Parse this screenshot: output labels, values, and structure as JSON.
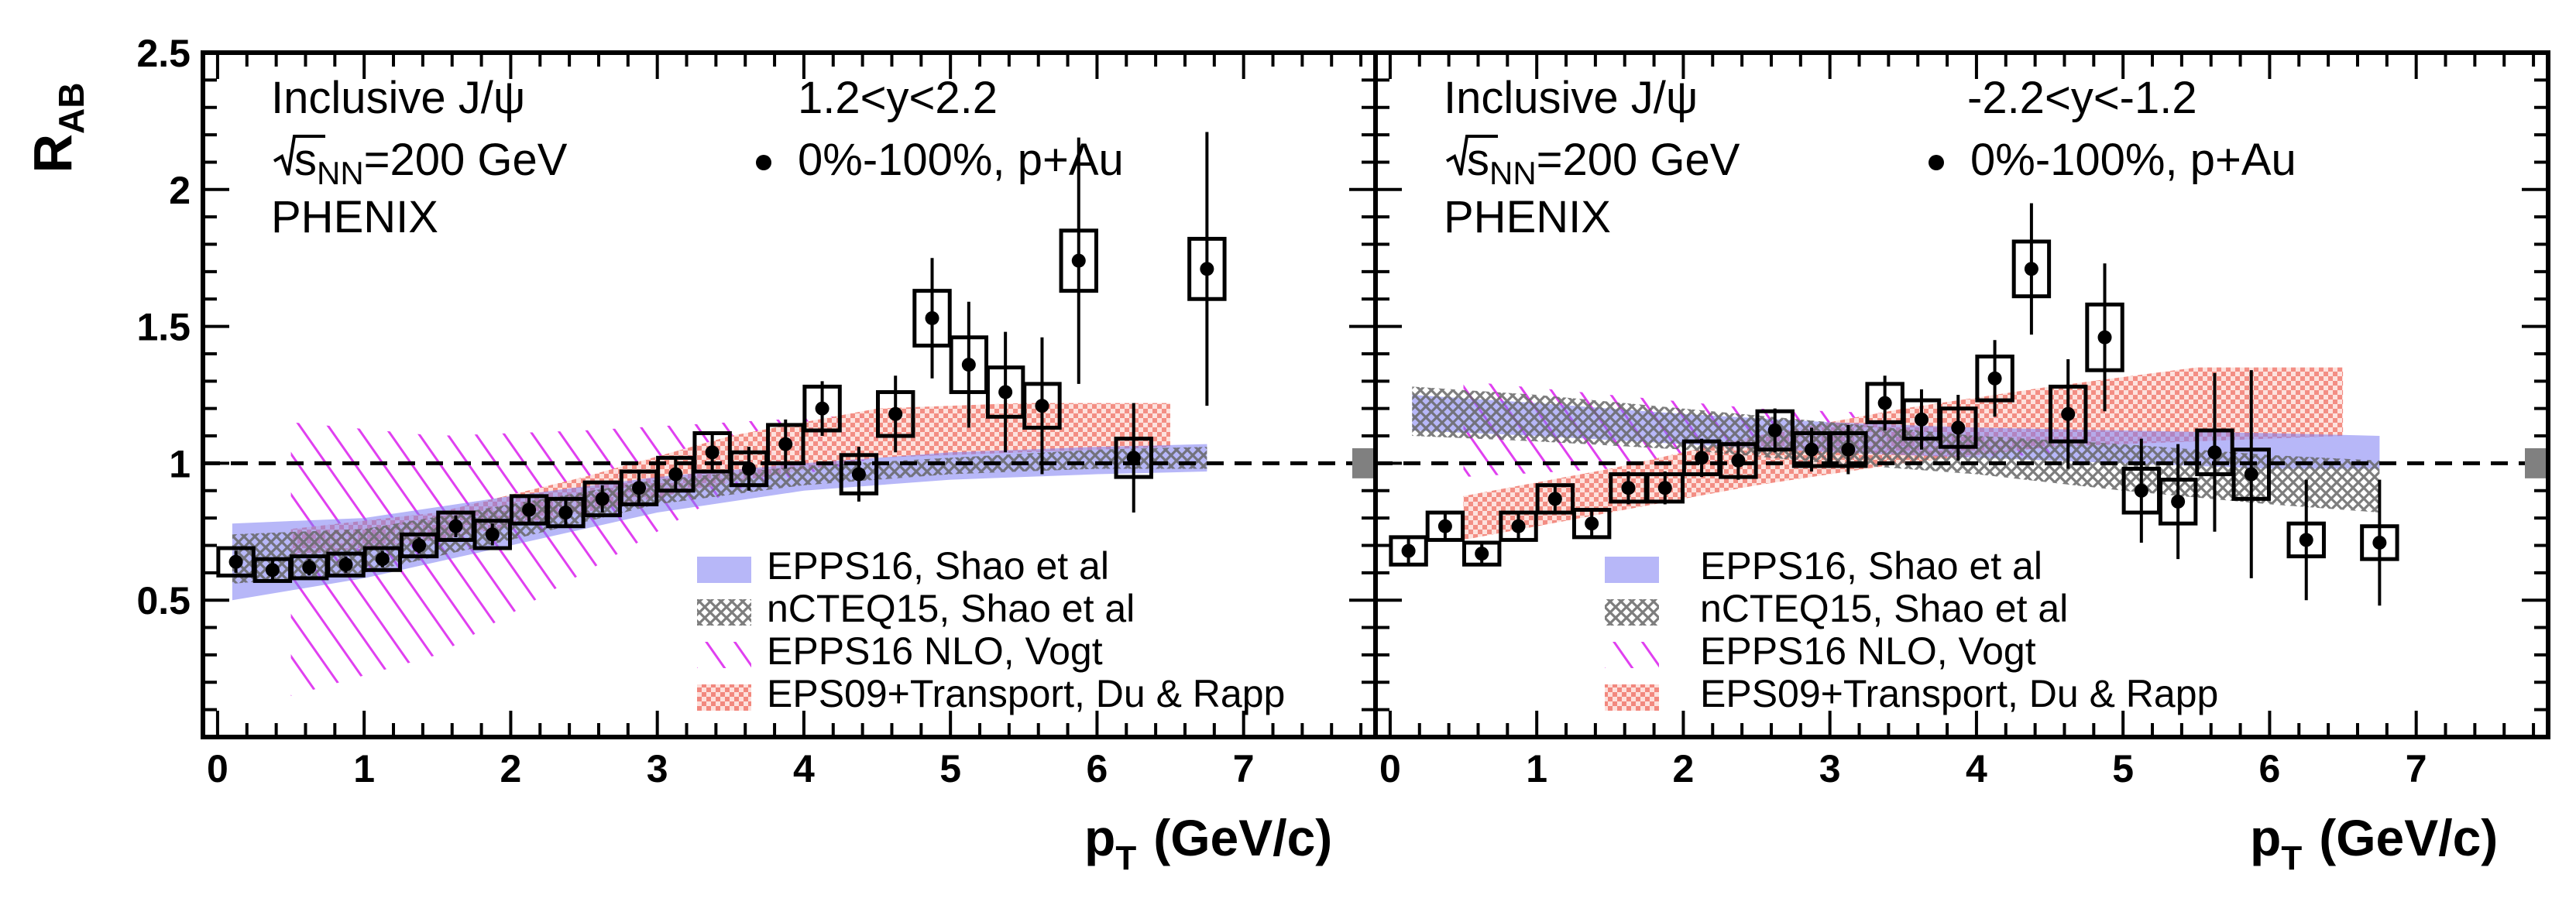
{
  "chart_data": [
    {
      "type": "scatter",
      "panel": "left",
      "annotations": {
        "label": "Inclusive J/ψ",
        "rapidity": "1.2<y<2.2",
        "energy": "=200 GeV",
        "energy_symbol": "s",
        "energy_sub": "NN",
        "experiment": "PHENIX",
        "series_label": "0%-100%, p+Au"
      },
      "xlabel_main": "p",
      "xlabel_sub": "T",
      "xlabel_unit": "(GeV/c)",
      "ylabel_main": "R",
      "ylabel_sub": "AB",
      "xlim": [
        -0.1,
        7.9
      ],
      "ylim": [
        0.0,
        2.5
      ],
      "x_ticks": [
        0,
        1,
        2,
        3,
        4,
        5,
        6,
        7
      ],
      "y_ticks": [
        0.5,
        1,
        1.5,
        2,
        2.5
      ],
      "reference_line": 1,
      "global_uncertainty": 0.11,
      "legend": [
        {
          "key": "epps16",
          "label": "EPPS16, Shao et al"
        },
        {
          "key": "ncteq15",
          "label": "nCTEQ15, Shao et al"
        },
        {
          "key": "vogt",
          "label": "EPPS16 NLO, Vogt"
        },
        {
          "key": "rapp",
          "label": "EPS09+Transport, Du & Rapp"
        }
      ],
      "points": {
        "x": [
          0.125,
          0.375,
          0.625,
          0.875,
          1.125,
          1.375,
          1.625,
          1.875,
          2.125,
          2.375,
          2.625,
          2.875,
          3.125,
          3.375,
          3.625,
          3.875,
          4.125,
          4.375,
          4.625,
          4.875,
          5.125,
          5.375,
          5.625,
          5.875,
          6.25,
          6.75
        ],
        "y": [
          0.64,
          0.61,
          0.62,
          0.63,
          0.65,
          0.7,
          0.77,
          0.74,
          0.83,
          0.82,
          0.87,
          0.91,
          0.96,
          1.04,
          0.98,
          1.07,
          1.2,
          0.96,
          1.18,
          1.53,
          1.36,
          1.26,
          1.21,
          1.74,
          1.02,
          1.71
        ],
        "stat_err": [
          0.04,
          0.04,
          0.03,
          0.03,
          0.03,
          0.03,
          0.04,
          0.04,
          0.05,
          0.05,
          0.05,
          0.06,
          0.06,
          0.07,
          0.08,
          0.09,
          0.1,
          0.1,
          0.14,
          0.22,
          0.23,
          0.22,
          0.25,
          0.45,
          0.2,
          0.5
        ],
        "sys_err": [
          0.05,
          0.04,
          0.04,
          0.04,
          0.04,
          0.04,
          0.05,
          0.05,
          0.05,
          0.05,
          0.06,
          0.06,
          0.06,
          0.07,
          0.06,
          0.07,
          0.08,
          0.07,
          0.08,
          0.1,
          0.1,
          0.09,
          0.08,
          0.11,
          0.07,
          0.11
        ]
      },
      "bands": {
        "epps16": {
          "x": [
            0.1,
            1,
            2,
            3,
            4,
            5,
            6,
            6.75
          ],
          "lo": [
            0.5,
            0.58,
            0.7,
            0.82,
            0.9,
            0.94,
            0.96,
            0.97
          ],
          "hi": [
            0.78,
            0.8,
            0.88,
            0.95,
            1.0,
            1.04,
            1.06,
            1.07
          ]
        },
        "ncteq15": {
          "x": [
            0.1,
            1,
            2,
            3,
            4,
            5,
            6,
            6.75
          ],
          "lo": [
            0.56,
            0.6,
            0.72,
            0.85,
            0.92,
            0.96,
            0.98,
            0.98
          ],
          "hi": [
            0.74,
            0.76,
            0.85,
            0.94,
            0.99,
            1.02,
            1.05,
            1.06
          ]
        },
        "vogt": {
          "x": [
            0.5,
            1.5,
            2.5,
            3.5,
            4.5
          ],
          "lo": [
            0.15,
            0.3,
            0.6,
            0.9,
            1.02
          ],
          "hi": [
            1.15,
            1.1,
            1.12,
            1.15,
            1.18
          ]
        },
        "rapp": {
          "x": [
            0.5,
            1.5,
            2.5,
            3.5,
            4.5,
            5.5,
            6.5
          ],
          "lo": [
            0.66,
            0.72,
            0.82,
            0.93,
            1.02,
            1.04,
            1.06
          ],
          "hi": [
            0.76,
            0.82,
            0.95,
            1.1,
            1.2,
            1.22,
            1.22
          ]
        }
      }
    },
    {
      "type": "scatter",
      "panel": "right",
      "annotations": {
        "label": "Inclusive J/ψ",
        "rapidity": "-2.2<y<-1.2",
        "energy": "=200 GeV",
        "energy_symbol": "s",
        "energy_sub": "NN",
        "experiment": "PHENIX",
        "series_label": "0%-100%, p+Au"
      },
      "xlabel_main": "p",
      "xlabel_sub": "T",
      "xlabel_unit": "(GeV/c)",
      "xlim": [
        -0.1,
        7.9
      ],
      "ylim": [
        0.0,
        2.5
      ],
      "x_ticks": [
        0,
        1,
        2,
        3,
        4,
        5,
        6,
        7
      ],
      "y_ticks": [
        0.5,
        1,
        1.5,
        2,
        2.5
      ],
      "reference_line": 1,
      "global_uncertainty": 0.11,
      "legend": [
        {
          "key": "epps16",
          "label": "EPPS16, Shao et al"
        },
        {
          "key": "ncteq15",
          "label": "nCTEQ15, Shao et al"
        },
        {
          "key": "vogt",
          "label": "EPPS16 NLO, Vogt"
        },
        {
          "key": "rapp",
          "label": "EPS09+Transport, Du & Rapp"
        }
      ],
      "points": {
        "x": [
          0.125,
          0.375,
          0.625,
          0.875,
          1.125,
          1.375,
          1.625,
          1.875,
          2.125,
          2.375,
          2.625,
          2.875,
          3.125,
          3.375,
          3.625,
          3.875,
          4.125,
          4.375,
          4.625,
          4.875,
          5.125,
          5.375,
          5.625,
          5.875,
          6.25,
          6.75
        ],
        "y": [
          0.68,
          0.77,
          0.67,
          0.77,
          0.87,
          0.78,
          0.91,
          0.91,
          1.02,
          1.01,
          1.12,
          1.05,
          1.05,
          1.22,
          1.16,
          1.13,
          1.31,
          1.71,
          1.18,
          1.46,
          0.9,
          0.86,
          1.04,
          0.96,
          0.72,
          0.71
        ],
        "stat_err": [
          0.05,
          0.05,
          0.04,
          0.05,
          0.05,
          0.05,
          0.06,
          0.06,
          0.07,
          0.07,
          0.08,
          0.08,
          0.09,
          0.1,
          0.11,
          0.12,
          0.14,
          0.24,
          0.2,
          0.27,
          0.19,
          0.21,
          0.29,
          0.38,
          0.22,
          0.23
        ],
        "sys_err": [
          0.05,
          0.05,
          0.04,
          0.05,
          0.05,
          0.05,
          0.05,
          0.05,
          0.06,
          0.06,
          0.07,
          0.06,
          0.06,
          0.07,
          0.07,
          0.07,
          0.08,
          0.1,
          0.1,
          0.12,
          0.08,
          0.08,
          0.08,
          0.09,
          0.06,
          0.06
        ]
      },
      "bands": {
        "epps16": {
          "x": [
            0.15,
            1,
            2,
            3,
            4,
            5,
            6,
            6.75
          ],
          "lo": [
            1.12,
            1.1,
            1.07,
            1.04,
            1.02,
            1.0,
            0.98,
            0.98
          ],
          "hi": [
            1.25,
            1.22,
            1.18,
            1.15,
            1.13,
            1.12,
            1.11,
            1.1
          ]
        },
        "ncteq15": {
          "x": [
            0.15,
            1,
            2,
            3,
            4,
            5,
            6,
            6.75
          ],
          "lo": [
            1.1,
            1.08,
            1.05,
            1.0,
            0.96,
            0.9,
            0.85,
            0.82
          ],
          "hi": [
            1.28,
            1.25,
            1.2,
            1.15,
            1.1,
            1.07,
            1.03,
            1.01
          ]
        },
        "vogt": {
          "x": [
            0.5,
            1.5,
            2.5,
            3.5,
            4.5
          ],
          "lo": [
            0.95,
            0.98,
            1.0,
            1.02,
            1.03
          ],
          "hi": [
            1.3,
            1.25,
            1.2,
            1.18,
            1.17
          ]
        },
        "rapp": {
          "x": [
            0.5,
            1.5,
            2.5,
            3.5,
            4.5,
            5.5,
            6.5
          ],
          "lo": [
            0.72,
            0.82,
            0.92,
            1.0,
            1.06,
            1.08,
            1.1
          ],
          "hi": [
            0.88,
            0.98,
            1.1,
            1.2,
            1.28,
            1.35,
            1.35
          ]
        }
      }
    }
  ]
}
